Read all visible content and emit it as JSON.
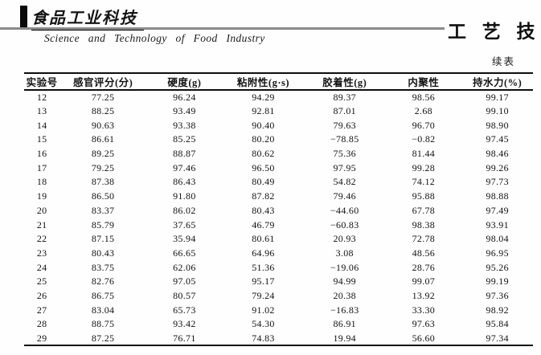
{
  "masthead": {
    "journal_logo_cn": "食品工业科技",
    "journal_subtitle_en": "Science and Technology of Food Industry",
    "section_title_cn": "工 艺 技 术"
  },
  "continued_label": "续表",
  "table": {
    "headers": [
      "实验号",
      "感官评分(分)",
      "硬度(g)",
      "粘附性(g·s)",
      "胶着性(g)",
      "内聚性",
      "持水力(%)"
    ],
    "rows": [
      [
        "12",
        "77.25",
        "96.24",
        "94.29",
        "89.37",
        "98.56",
        "99.17"
      ],
      [
        "13",
        "88.25",
        "93.49",
        "92.81",
        "87.01",
        "2.68",
        "99.10"
      ],
      [
        "14",
        "90.63",
        "93.38",
        "90.40",
        "79.63",
        "96.70",
        "98.90"
      ],
      [
        "15",
        "86.61",
        "85.25",
        "80.20",
        "−78.85",
        "−0.82",
        "97.45"
      ],
      [
        "16",
        "89.25",
        "88.87",
        "80.62",
        "75.36",
        "81.44",
        "98.46"
      ],
      [
        "17",
        "79.25",
        "97.46",
        "96.50",
        "97.95",
        "99.28",
        "99.26"
      ],
      [
        "18",
        "87.38",
        "86.43",
        "80.49",
        "54.82",
        "74.12",
        "97.73"
      ],
      [
        "19",
        "86.50",
        "91.80",
        "87.82",
        "79.46",
        "95.88",
        "98.88"
      ],
      [
        "20",
        "83.37",
        "86.02",
        "80.43",
        "−44.60",
        "67.78",
        "97.49"
      ],
      [
        "21",
        "85.79",
        "37.65",
        "46.79",
        "−60.83",
        "98.38",
        "93.91"
      ],
      [
        "22",
        "87.15",
        "35.94",
        "80.61",
        "20.93",
        "72.78",
        "98.04"
      ],
      [
        "23",
        "80.43",
        "66.65",
        "64.96",
        "3.08",
        "48.56",
        "96.95"
      ],
      [
        "24",
        "83.75",
        "62.06",
        "51.36",
        "−19.06",
        "28.76",
        "95.26"
      ],
      [
        "25",
        "82.76",
        "97.05",
        "95.17",
        "94.99",
        "99.07",
        "99.19"
      ],
      [
        "26",
        "86.75",
        "80.57",
        "79.24",
        "20.38",
        "13.92",
        "97.36"
      ],
      [
        "27",
        "83.04",
        "65.73",
        "91.02",
        "−16.83",
        "33.30",
        "98.92"
      ],
      [
        "28",
        "88.75",
        "93.42",
        "54.30",
        "86.91",
        "97.63",
        "95.84"
      ],
      [
        "29",
        "87.25",
        "76.71",
        "74.83",
        "19.94",
        "56.60",
        "97.34"
      ]
    ]
  }
}
